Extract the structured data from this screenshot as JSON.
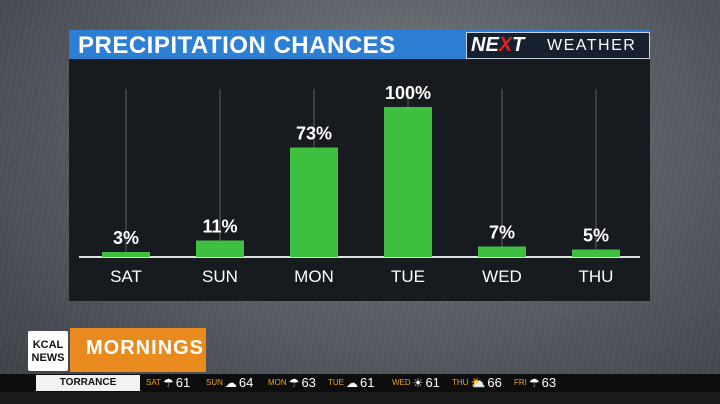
{
  "header": {
    "title": "PRECIPITATION CHANCES",
    "brand_next": "NEXT",
    "brand_weather": "WEATHER"
  },
  "chart_data": {
    "type": "bar",
    "categories": [
      "SAT",
      "SUN",
      "MON",
      "TUE",
      "WED",
      "THU"
    ],
    "values": [
      3,
      11,
      73,
      100,
      7,
      5
    ],
    "labels": [
      "3%",
      "11%",
      "73%",
      "100%",
      "7%",
      "5%"
    ],
    "ylim": [
      0,
      100
    ],
    "bar_color": "#3fbf3f",
    "title": "PRECIPITATION CHANCES"
  },
  "station": {
    "logo_line1": "KCAL",
    "logo_line2": "NEWS",
    "show": "MORNINGS"
  },
  "ticker": {
    "city": "TORRANCE",
    "items": [
      {
        "day": "SAT",
        "icon": "rain-icon",
        "glyph": "☂",
        "temp": "61"
      },
      {
        "day": "SUN",
        "icon": "cloud-icon",
        "glyph": "☁",
        "temp": "64"
      },
      {
        "day": "MON",
        "icon": "rain-icon",
        "glyph": "☂",
        "temp": "63"
      },
      {
        "day": "TUE",
        "icon": "cloud-icon",
        "glyph": "☁",
        "temp": "61"
      },
      {
        "day": "WED",
        "icon": "sun-icon",
        "glyph": "☀",
        "temp": "61"
      },
      {
        "day": "THU",
        "icon": "partly-cloudy-icon",
        "glyph": "⛅",
        "temp": "66"
      },
      {
        "day": "FRI",
        "icon": "rain-icon",
        "glyph": "☂",
        "temp": "63"
      }
    ]
  }
}
